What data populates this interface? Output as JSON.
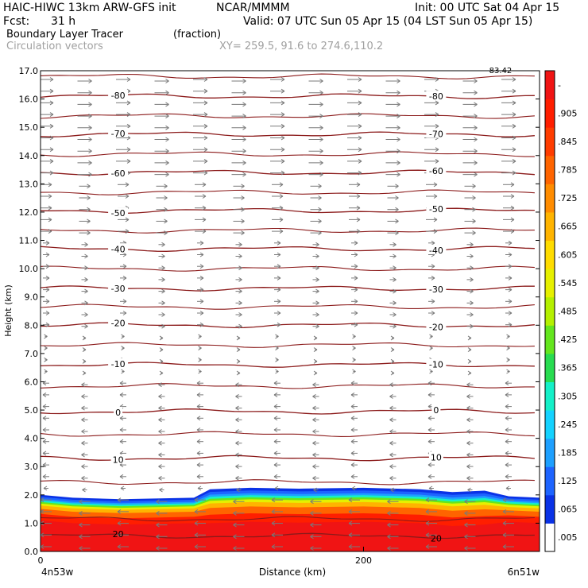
{
  "header": {
    "model": "HAIC-HIWC 13km ARW-GFS init",
    "org": "NCAR/MMMM",
    "init": "Init: 00 UTC Sat 04 Apr 15",
    "fcst_label": "Fcst:",
    "fcst_value": "31 h",
    "valid": "Valid: 07 UTC Sun 05 Apr 15 (04 LST Sun 05 Apr 15)",
    "field_name": "Boundary Layer Tracer",
    "field_units": "(fraction)",
    "vectors_label": "Circulation vectors",
    "xy_label": "XY= 259.5, 91.6 to 274.6,110.2"
  },
  "chart_data": {
    "type": "heatmap",
    "ylabel": "Height (km)",
    "xlabel": "Distance (km)",
    "xlim": [
      0,
      309
    ],
    "ylim": [
      0,
      17
    ],
    "yticks": [
      "0.0",
      "1.0",
      "2.0",
      "3.0",
      "4.0",
      "5.0",
      "6.0",
      "7.0",
      "8.0",
      "9.0",
      "10.0",
      "11.0",
      "12.0",
      "13.0",
      "14.0",
      "15.0",
      "16.0",
      "17.0"
    ],
    "xticks": [
      "0",
      "200"
    ],
    "x_end_labels": {
      "left": "4n53w",
      "right": "6n51w"
    },
    "colorbar": {
      "labels": [
        ".005",
        ".065",
        ".125",
        ".185",
        ".245",
        ".305",
        ".365",
        ".425",
        ".485",
        ".545",
        ".605",
        ".665",
        ".725",
        ".785",
        ".845",
        ".905",
        "-"
      ],
      "colors": [
        "#ffffff",
        "#0a32e6",
        "#1e64ff",
        "#1ea0ff",
        "#14d2ff",
        "#14f0c8",
        "#28dc50",
        "#64e61e",
        "#b4f000",
        "#e6f000",
        "#ffdc00",
        "#ffb400",
        "#ff8c00",
        "#ff6400",
        "#ff3c00",
        "#ff1e00",
        "#f01414"
      ]
    },
    "tracer_top_km": [
      [
        0,
        2.0
      ],
      [
        20,
        1.9
      ],
      [
        50,
        1.85
      ],
      [
        95,
        1.9
      ],
      [
        105,
        2.2
      ],
      [
        130,
        2.25
      ],
      [
        160,
        2.22
      ],
      [
        200,
        2.25
      ],
      [
        235,
        2.2
      ],
      [
        255,
        2.1
      ],
      [
        275,
        2.15
      ],
      [
        290,
        1.95
      ],
      [
        309,
        1.9
      ]
    ],
    "isotherms": [
      {
        "label": "-80",
        "height": 16.1
      },
      {
        "label": "-70",
        "height": 14.75
      },
      {
        "label": "-60",
        "height": 13.4
      },
      {
        "label": "-50",
        "height": 12.05
      },
      {
        "label": "-40",
        "height": 10.7
      },
      {
        "label": "-30",
        "height": 9.3
      },
      {
        "label": "-20",
        "height": 8.0
      },
      {
        "label": "-10",
        "height": 6.6
      },
      {
        "label": "0",
        "height": 4.95
      },
      {
        "label": "10",
        "height": 3.3
      },
      {
        "label": "20",
        "height": 0.55
      }
    ],
    "unlabeled_isotherm_heights": [
      16.8,
      15.4,
      14.05,
      12.7,
      11.35,
      10.0,
      8.65,
      7.3,
      5.85,
      4.15,
      2.45,
      1.15
    ],
    "top_right_contour_label": "-83.42"
  }
}
